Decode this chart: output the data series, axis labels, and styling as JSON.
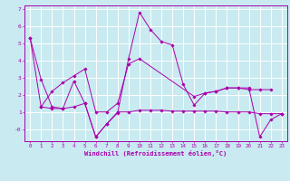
{
  "background_color": "#c8eaf0",
  "grid_color": "#ffffff",
  "line_color": "#aa00aa",
  "xlabel": "Windchill (Refroidissement éolien,°C)",
  "xlim": [
    -0.5,
    23.5
  ],
  "ylim": [
    -0.7,
    7.2
  ],
  "yticks": [
    0,
    1,
    2,
    3,
    4,
    5,
    6,
    7
  ],
  "ytick_labels": [
    "-0",
    "1",
    "2",
    "3",
    "4",
    "5",
    "6",
    "7"
  ],
  "xticks": [
    0,
    1,
    2,
    3,
    4,
    5,
    6,
    7,
    8,
    9,
    10,
    11,
    12,
    13,
    14,
    15,
    16,
    17,
    18,
    19,
    20,
    21,
    22,
    23
  ],
  "series": [
    {
      "x": [
        0,
        1,
        2,
        3,
        4,
        5,
        6,
        7,
        8,
        9,
        10,
        11,
        12,
        13,
        14,
        15,
        16,
        17,
        18,
        19,
        20,
        21,
        22,
        23
      ],
      "y": [
        5.3,
        1.3,
        1.2,
        1.2,
        1.3,
        1.5,
        -0.45,
        0.3,
        1.0,
        1.0,
        1.1,
        1.1,
        1.1,
        1.05,
        1.05,
        1.05,
        1.05,
        1.05,
        1.0,
        1.0,
        1.0,
        0.9,
        0.9,
        0.9
      ]
    },
    {
      "x": [
        0,
        1,
        2,
        3,
        4,
        5,
        6,
        7,
        8,
        9,
        10,
        11,
        12,
        13,
        14,
        15,
        16,
        17,
        18,
        19,
        20,
        21,
        22,
        23
      ],
      "y": [
        5.3,
        2.9,
        1.3,
        1.2,
        2.8,
        1.5,
        -0.45,
        0.3,
        0.95,
        4.1,
        6.8,
        5.8,
        5.1,
        4.9,
        2.6,
        1.4,
        2.1,
        2.2,
        2.4,
        2.4,
        2.4,
        -0.45,
        0.55,
        0.9
      ]
    },
    {
      "x": [
        1,
        2,
        3,
        4,
        5,
        6,
        7,
        8,
        9,
        10,
        15,
        16,
        17,
        18,
        19,
        20,
        21,
        22
      ],
      "y": [
        1.3,
        2.2,
        2.7,
        3.1,
        3.5,
        1.0,
        1.0,
        1.5,
        3.8,
        4.1,
        1.9,
        2.1,
        2.2,
        2.4,
        2.4,
        2.3,
        2.3,
        2.3
      ]
    }
  ]
}
